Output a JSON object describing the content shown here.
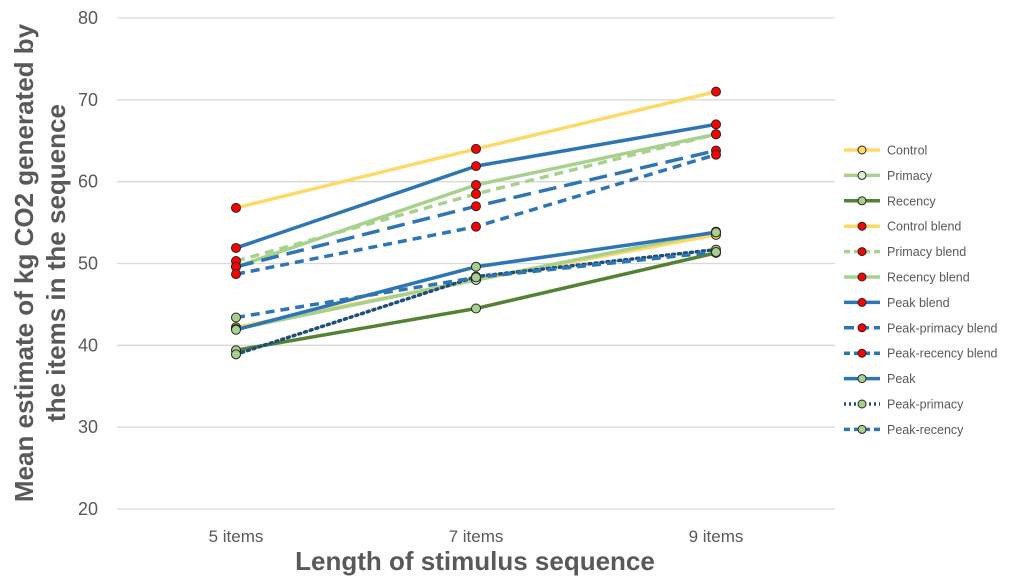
{
  "chart_data": {
    "type": "line",
    "xlabel": "Length of stimulus sequence",
    "ylabel": "Mean estimate of kg CO2 generated by the items in the sequence",
    "ylabel_lines": [
      "Mean estimate of kg CO2 generated by",
      "the items in the sequence"
    ],
    "categories": [
      "5 items",
      "7 items",
      "9 items"
    ],
    "ylim": [
      20,
      80
    ],
    "yticks": [
      20,
      30,
      40,
      50,
      60,
      70,
      80
    ],
    "ytick_labels": [
      "20",
      "30",
      "40",
      "50",
      "60",
      "70",
      "80"
    ],
    "grid": true,
    "legend_position": "right",
    "series": [
      {
        "name": "Control",
        "values": [
          42.2,
          48.0,
          53.5
        ],
        "color": "#FFD966",
        "dash": "solid",
        "marker_fill": "#FFD966"
      },
      {
        "name": "Primacy",
        "values": [
          42.0,
          48.0,
          53.9
        ],
        "color": "#A9D18E",
        "dash": "solid",
        "marker_fill": "#E2F0D9"
      },
      {
        "name": "Recency",
        "values": [
          39.4,
          44.5,
          51.3
        ],
        "color": "#548235",
        "dash": "solid",
        "marker_fill": "#A9D18E"
      },
      {
        "name": "Control blend",
        "values": [
          56.8,
          64.0,
          71.0
        ],
        "color": "#FFD966",
        "dash": "solid",
        "marker_fill": "#FF0000"
      },
      {
        "name": "Primacy blend",
        "values": [
          50.3,
          58.5,
          65.8
        ],
        "color": "#A9D18E",
        "dash": "dashed",
        "marker_fill": "#FF0000"
      },
      {
        "name": "Recency blend",
        "values": [
          49.6,
          59.6,
          65.8
        ],
        "color": "#A9D18E",
        "dash": "solid",
        "marker_fill": "#FF0000"
      },
      {
        "name": "Peak blend",
        "values": [
          51.9,
          61.9,
          67.0
        ],
        "color": "#2E75B6",
        "dash": "solid",
        "marker_fill": "#FF0000"
      },
      {
        "name": "Peak-primacy blend",
        "values": [
          49.6,
          57.0,
          63.8
        ],
        "color": "#2E75B6",
        "dash": "longdash",
        "marker_fill": "#FF0000"
      },
      {
        "name": "Peak-recency blend",
        "values": [
          48.7,
          54.5,
          63.3
        ],
        "color": "#2E75B6",
        "dash": "dashed",
        "marker_fill": "#FF0000"
      },
      {
        "name": "Peak",
        "values": [
          41.9,
          49.6,
          53.8
        ],
        "color": "#2E75B6",
        "dash": "solid",
        "marker_fill": "#A9D18E"
      },
      {
        "name": "Peak-primacy",
        "values": [
          38.9,
          48.4,
          51.7
        ],
        "color": "#1F4E79",
        "dash": "dotted",
        "marker_fill": "#A9D18E"
      },
      {
        "name": "Peak-recency",
        "values": [
          43.4,
          48.3,
          51.4
        ],
        "color": "#2E75B6",
        "dash": "dashed",
        "marker_fill": "#A9D18E"
      }
    ]
  }
}
